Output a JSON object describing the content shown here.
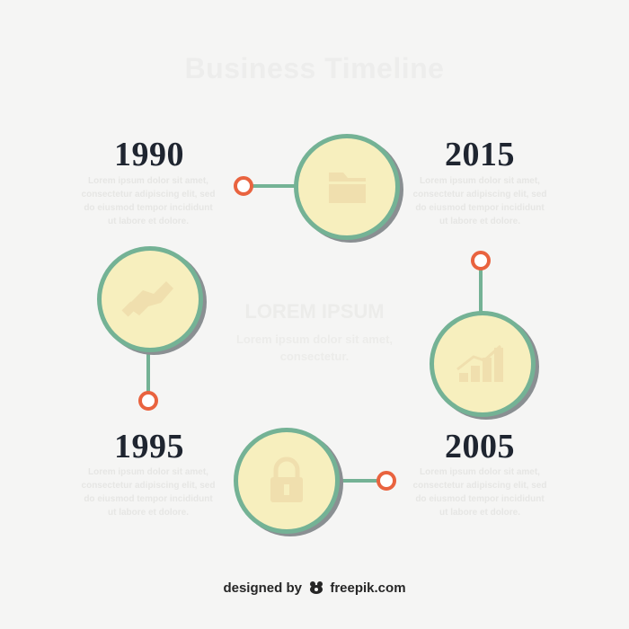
{
  "title": "Business Timeline",
  "center": {
    "heading": "LOREM IPSUM",
    "body": "Lorem ipsum dolor sit amet, consectetur."
  },
  "milestones": [
    {
      "year": "1990",
      "text": "Lorem ipsum dolor sit amet, consectetur adipiscing elit, sed do eiusmod tempor incididunt ut labore et dolore.",
      "icon": "folder-icon"
    },
    {
      "year": "2015",
      "text": "Lorem ipsum dolor sit amet, consectetur adipiscing elit, sed do eiusmod tempor incididunt ut labore et dolore.",
      "icon": "growth-chart-icon"
    },
    {
      "year": "1995",
      "text": "Lorem ipsum dolor sit amet, consectetur adipiscing elit, sed do eiusmod tempor incididunt ut labore et dolore.",
      "icon": "handshake-icon"
    },
    {
      "year": "2005",
      "text": "Lorem ipsum dolor sit amet, consectetur adipiscing elit, sed do eiusmod tempor incididunt ut labore et dolore.",
      "icon": "padlock-icon"
    }
  ],
  "footer": {
    "prefix": "designed by",
    "brand": "freepik.com",
    "logo_icon": "freepik-logo-icon"
  },
  "colors": {
    "circle_fill": "#f7efbe",
    "circle_ring": "#74b295",
    "connector": "#74b295",
    "node": "#e9633f",
    "year_text": "#1f2530",
    "background": "#f5f5f4"
  }
}
